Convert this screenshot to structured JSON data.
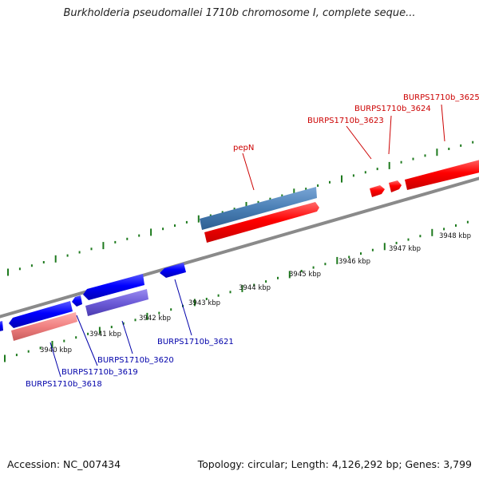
{
  "title": "Burkholderia pseudomallei 1710b chromosome I, complete seque...",
  "footer": {
    "accession": "Accession: NC_007434",
    "summary": "Topology: circular; Length: 4,126,292 bp; Genes: 3,799"
  },
  "colors": {
    "backbone": "#8a8a8a",
    "tick": "#1e7a1e",
    "forward_gene": "#ee1111",
    "forward_label": "#cc0000",
    "reverse_gene": "#1111ee",
    "reverse_label": "#0000aa",
    "forward_rna": "#f08080",
    "reverse_rna": "#7766dd",
    "highlight": "#4a7fb5"
  },
  "axis": {
    "unit": "kbp",
    "tick_labels": [
      {
        "kbp": 3940,
        "text": "3940 kbp"
      },
      {
        "kbp": 3941,
        "text": "3941 kbp"
      },
      {
        "kbp": 3942,
        "text": "3942 kbp"
      },
      {
        "kbp": 3943,
        "text": "3943 kbp"
      },
      {
        "kbp": 3944,
        "text": "3944 kbp"
      },
      {
        "kbp": 3945,
        "text": "3945 kbp"
      },
      {
        "kbp": 3946,
        "text": "3946 kbp"
      },
      {
        "kbp": 3947,
        "text": "3947 kbp"
      },
      {
        "kbp": 3948,
        "text": "3948 kbp"
      }
    ]
  },
  "gene_labels": {
    "pepN": "pepN",
    "burps_3618": "BURPS1710b_3618",
    "burps_3619": "BURPS1710b_3619",
    "burps_3620": "BURPS1710b_3620",
    "burps_3621": "BURPS1710b_3621",
    "burps_3623": "BURPS1710b_3623",
    "burps_3624": "BURPS1710b_3624",
    "burps_3625": "BURPS1710b_3625"
  }
}
